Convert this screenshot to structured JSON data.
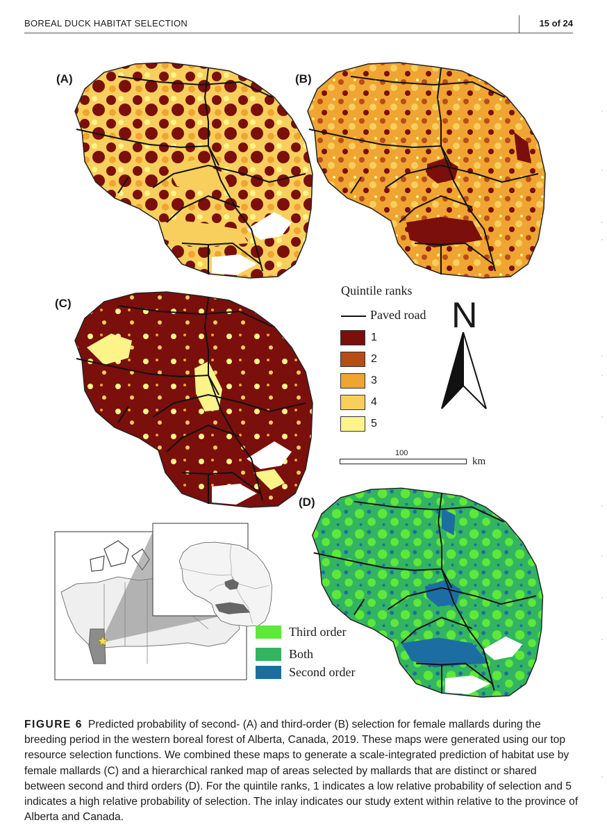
{
  "header": {
    "running_title": "BOREAL DUCK HABITAT SELECTION",
    "page_number": "15 of 24"
  },
  "figure": {
    "panels": [
      {
        "label": "(A)",
        "icon": "quintile-map-icon"
      },
      {
        "label": "(B)",
        "icon": "quintile-map-icon"
      },
      {
        "label": "(C)",
        "icon": "quintile-map-icon"
      },
      {
        "label": "(D)",
        "icon": "order-map-icon"
      }
    ],
    "legend": {
      "title": "Quintile ranks",
      "road_label": "Paved road",
      "ranks": [
        {
          "label": "1",
          "color": "#7a0f0c"
        },
        {
          "label": "2",
          "color": "#b84c19"
        },
        {
          "label": "3",
          "color": "#f0a431"
        },
        {
          "label": "4",
          "color": "#f8cf5d"
        },
        {
          "label": "5",
          "color": "#fcf489"
        }
      ]
    },
    "order_legend": [
      {
        "label": "Third order",
        "color": "#5ee83a"
      },
      {
        "label": "Both",
        "color": "#33b460"
      },
      {
        "label": "Second order",
        "color": "#1c6ea2"
      }
    ],
    "scale": {
      "value": "100",
      "unit": "km"
    },
    "north": "N"
  },
  "caption": {
    "label": "FIGURE 6",
    "text": "Predicted probability of second- (A) and third-order (B) selection for female mallards during the breeding period in the western boreal forest of Alberta, Canada, 2019. These maps were generated using our top resource selection functions. We combined these maps to generate a scale-integrated prediction of habitat use by female mallards (C) and a hierarchical ranked map of areas selected by mallards that are distinct or shared between second and third orders (D). For the quintile ranks, 1 indicates a low relative probability of selection and 5 indicates a high relative probability of selection. The inlay indicates our study extent within relative to the province of Alberta and Canada."
  }
}
